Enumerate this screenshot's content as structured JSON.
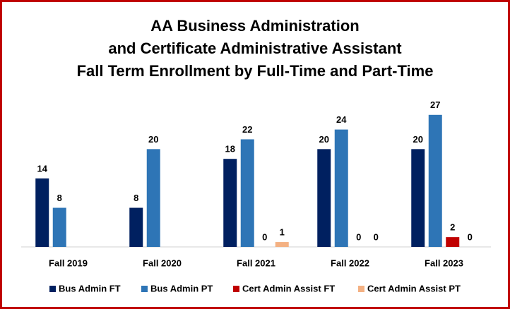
{
  "chart_data": {
    "type": "bar",
    "title": [
      "AA Business Administration",
      "and Certificate Administrative Assistant",
      "Fall Term Enrollment by Full-Time and Part-Time"
    ],
    "categories": [
      "Fall 2019",
      "Fall 2020",
      "Fall 2021",
      "Fall 2022",
      "Fall 2023"
    ],
    "series": [
      {
        "name": "Bus Admin FT",
        "color": "#002060",
        "values": [
          14,
          8,
          18,
          20,
          20
        ]
      },
      {
        "name": "Bus Admin PT",
        "color": "#2e75b6",
        "values": [
          8,
          20,
          22,
          24,
          27
        ]
      },
      {
        "name": "Cert Admin Assist FT",
        "color": "#c00000",
        "values": [
          null,
          null,
          0,
          0,
          2
        ]
      },
      {
        "name": "Cert Admin Assist PT",
        "color": "#f4b183",
        "values": [
          null,
          null,
          1,
          0,
          0
        ]
      }
    ],
    "ylim": [
      0,
      30
    ],
    "legend": "bottom"
  }
}
